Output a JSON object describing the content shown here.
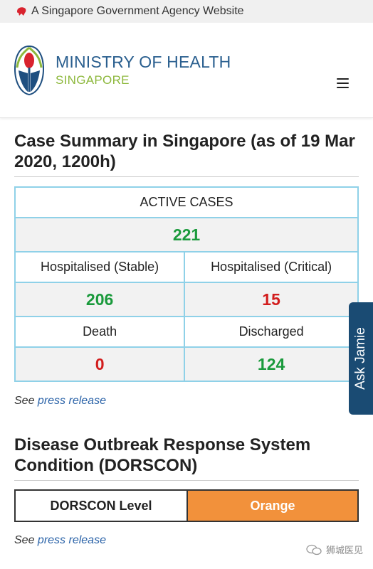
{
  "gov_banner": {
    "text": "A Singapore Government Agency Website",
    "icon": "lion-head-icon"
  },
  "header": {
    "title": "MINISTRY OF HEALTH",
    "subtitle": "SINGAPORE",
    "logo": "moh-logo",
    "menu_icon": "hamburger-menu-icon"
  },
  "case_summary": {
    "title": "Case Summary in Singapore (as of 19 Mar 2020, 1200h)",
    "active_label": "ACTIVE CASES",
    "active_value": "221",
    "hosp_stable_label": "Hospitalised (Stable)",
    "hosp_critical_label": "Hospitalised (Critical)",
    "hosp_stable_value": "206",
    "hosp_critical_value": "15",
    "death_label": "Death",
    "discharged_label": "Discharged",
    "death_value": "0",
    "discharged_value": "124",
    "see_prefix": "See",
    "press_link": "press release"
  },
  "dorscon": {
    "title": "Disease Outbreak Response System Condition (DORSCON)",
    "level_label": "DORSCON Level",
    "level_value": "Orange",
    "level_color": "#f2913b",
    "see_prefix": "See",
    "press_link": "press release"
  },
  "ask_jamie": {
    "label": "Ask Jamie"
  },
  "watermark": {
    "text": "狮城医见"
  },
  "colors": {
    "green": "#1a9a3c",
    "red": "#d21d1d",
    "brand_blue": "#2a5f8f",
    "brand_green": "#8db83c",
    "table_border": "#8fd1e8"
  }
}
